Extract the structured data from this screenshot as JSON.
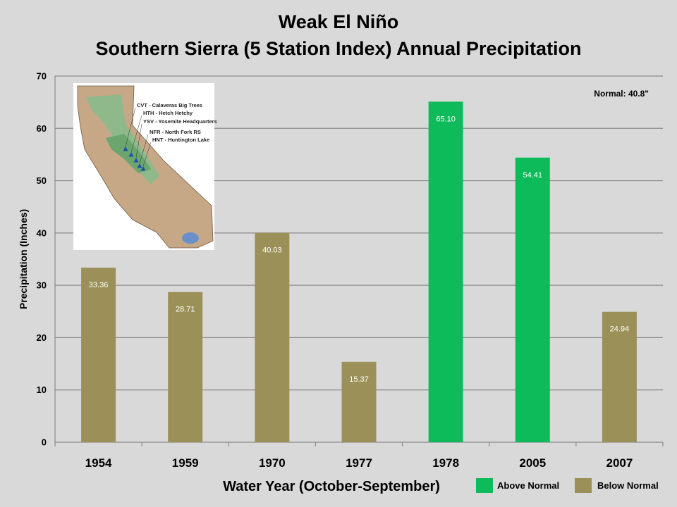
{
  "chart_data": {
    "type": "bar",
    "title_lines": [
      "Weak El Niño",
      "Southern Sierra (5 Station Index) Annual Precipitation"
    ],
    "xlabel": "Water Year (October-September)",
    "ylabel": "Precipitation (Inches)",
    "ylim": [
      0,
      70
    ],
    "yticks": [
      0,
      10,
      20,
      30,
      40,
      50,
      60,
      70
    ],
    "grid": true,
    "categories": [
      "1954",
      "1959",
      "1970",
      "1977",
      "1978",
      "2005",
      "2007"
    ],
    "values": [
      33.36,
      28.71,
      40.03,
      15.37,
      65.1,
      54.41,
      24.94
    ],
    "value_labels": [
      "33.36",
      "28.71",
      "40.03",
      "15.37",
      "65.10",
      "54.41",
      "24.94"
    ],
    "groups": [
      "below",
      "below",
      "below",
      "below",
      "above",
      "above",
      "below"
    ],
    "annotation": "Normal: 40.8\"",
    "legend": {
      "position": "bottom-right",
      "entries": [
        {
          "key": "above",
          "label": "Above Normal",
          "color": "#0dbb5a"
        },
        {
          "key": "below",
          "label": "Below  Normal",
          "color": "#9b9158"
        }
      ]
    },
    "inset_map": {
      "stations": [
        "CVT - Calaveras Big Trees",
        "HTH - Hetch Hetchy",
        "YSV - Yosemite Headquarters",
        "NFR - North Fork RS",
        "HNT - Huntington Lake"
      ]
    }
  }
}
